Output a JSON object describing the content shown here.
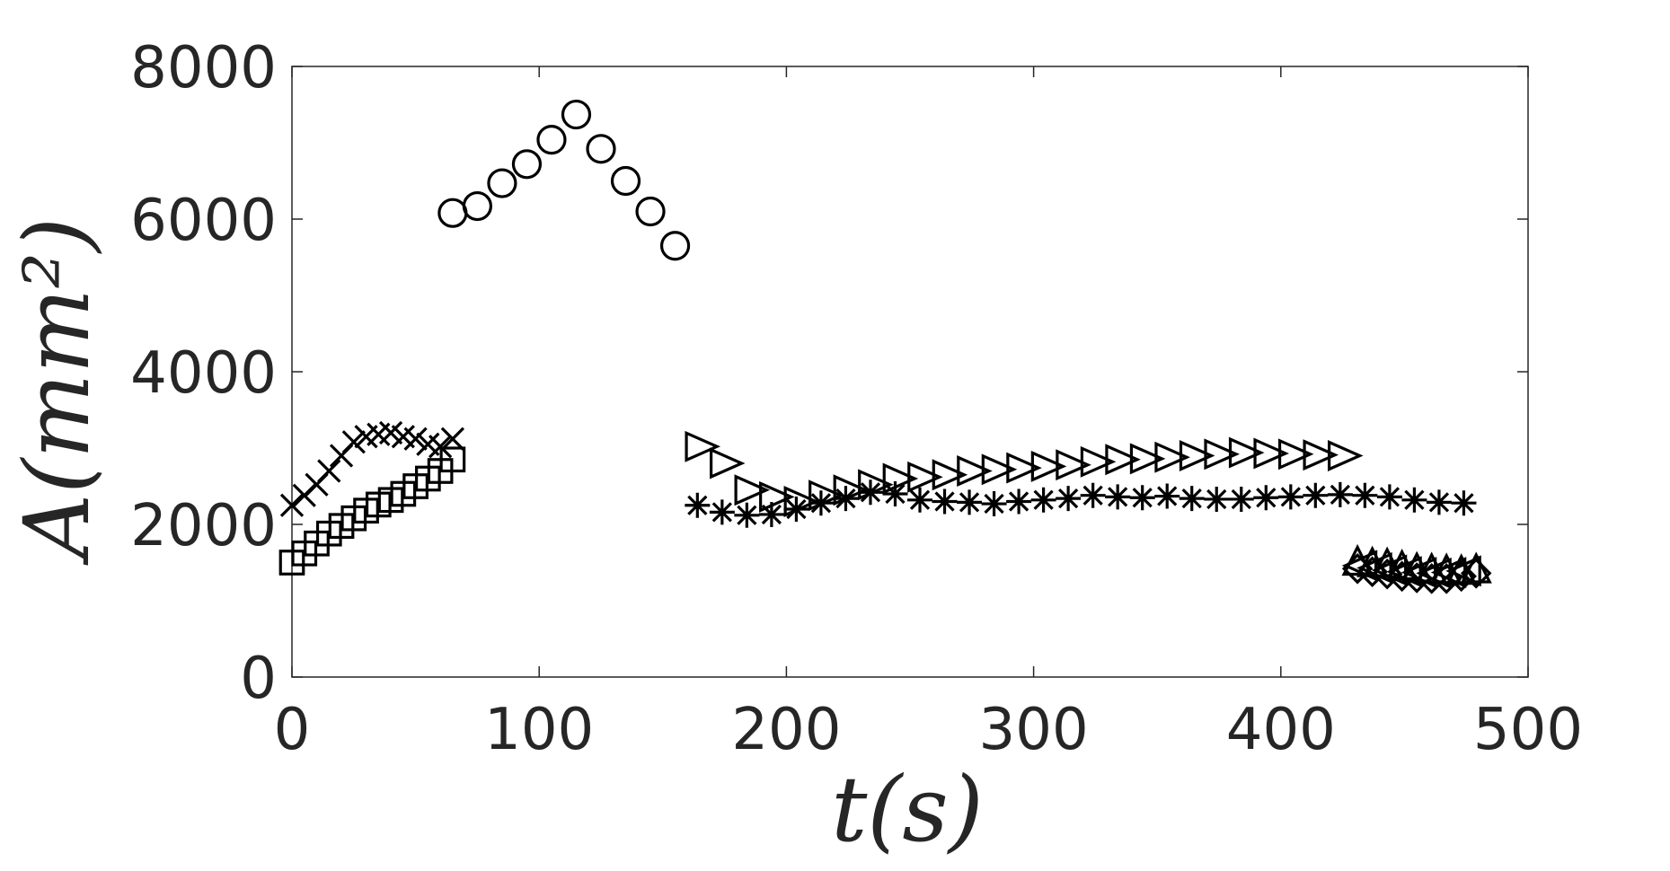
{
  "chart_data": {
    "type": "scatter",
    "xlabel": "t(s)",
    "ylabel": "A(mm²)",
    "xlim": [
      0,
      500
    ],
    "ylim": [
      0,
      8000
    ],
    "xticks": [
      "0",
      "100",
      "200",
      "300",
      "400",
      "500"
    ],
    "yticks": [
      "0",
      "2000",
      "4000",
      "6000",
      "8000"
    ],
    "grid": false,
    "series": [
      {
        "marker": "square",
        "x": [
          0,
          5,
          10,
          15,
          20,
          25,
          30,
          35,
          40,
          45,
          50,
          55,
          60,
          65
        ],
        "y": [
          1500,
          1620,
          1750,
          1880,
          1980,
          2080,
          2180,
          2260,
          2320,
          2400,
          2500,
          2600,
          2700,
          2850
        ]
      },
      {
        "marker": "x",
        "x": [
          0,
          5,
          10,
          15,
          20,
          25,
          30,
          35,
          40,
          45,
          50,
          55,
          60,
          65
        ],
        "y": [
          2250,
          2380,
          2520,
          2700,
          2900,
          3080,
          3150,
          3180,
          3200,
          3150,
          3120,
          3050,
          3020,
          3120
        ]
      },
      {
        "marker": "circle",
        "x": [
          65,
          75,
          85,
          95,
          105,
          115,
          125,
          135,
          145,
          155
        ],
        "y": [
          6080,
          6170,
          6470,
          6720,
          7040,
          7370,
          6920,
          6500,
          6100,
          5650
        ]
      },
      {
        "marker": "triangle-right",
        "x": [
          165,
          175,
          185,
          195,
          205,
          215,
          225,
          235,
          245,
          255,
          265,
          275,
          285,
          295,
          305,
          315,
          325,
          335,
          345,
          355,
          365,
          375,
          385,
          395,
          405,
          415,
          425
        ],
        "y": [
          3020,
          2800,
          2450,
          2360,
          2300,
          2380,
          2450,
          2520,
          2600,
          2620,
          2650,
          2700,
          2720,
          2740,
          2760,
          2780,
          2820,
          2850,
          2860,
          2880,
          2900,
          2920,
          2940,
          2930,
          2920,
          2910,
          2900
        ]
      },
      {
        "marker": "asterisk",
        "x": [
          164,
          174,
          184,
          194,
          204,
          214,
          224,
          234,
          244,
          254,
          264,
          274,
          284,
          294,
          304,
          314,
          324,
          334,
          344,
          354,
          364,
          374,
          384,
          394,
          404,
          414,
          424,
          434,
          444,
          454,
          464,
          474
        ],
        "y": [
          2250,
          2160,
          2120,
          2130,
          2200,
          2280,
          2340,
          2420,
          2400,
          2320,
          2300,
          2290,
          2270,
          2300,
          2320,
          2340,
          2380,
          2360,
          2350,
          2370,
          2340,
          2330,
          2330,
          2350,
          2360,
          2380,
          2390,
          2380,
          2360,
          2320,
          2290,
          2280
        ]
      },
      {
        "marker": "triangle-up",
        "x": [
          431,
          437,
          443,
          449,
          455,
          461,
          467,
          473,
          479
        ],
        "y": [
          1500,
          1480,
          1470,
          1440,
          1410,
          1400,
          1390,
          1380,
          1400
        ]
      },
      {
        "marker": "diamond",
        "x": [
          431,
          437,
          443,
          449,
          455,
          461,
          467,
          473,
          479
        ],
        "y": [
          1420,
          1380,
          1350,
          1320,
          1300,
          1290,
          1290,
          1320,
          1360
        ]
      },
      {
        "marker": "triangle-left",
        "x": [
          433,
          439,
          445,
          451,
          457,
          463,
          469,
          475
        ],
        "y": [
          1460,
          1430,
          1400,
          1380,
          1370,
          1360,
          1370,
          1390
        ]
      }
    ]
  }
}
